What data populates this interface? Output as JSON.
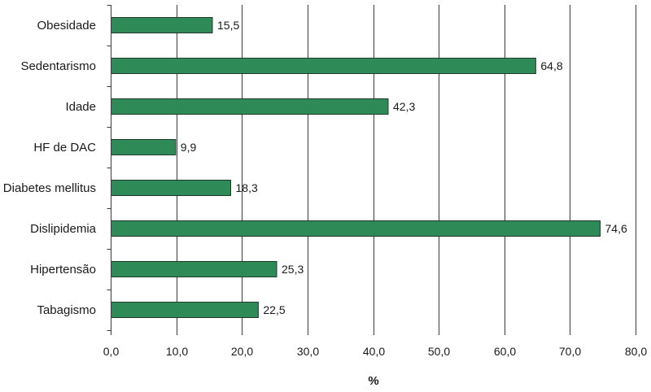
{
  "chart_data": {
    "type": "bar",
    "orientation": "horizontal",
    "categories": [
      "Obesidade",
      "Sedentarismo",
      "Idade",
      "HF de DAC",
      "Diabetes mellitus",
      "Dislipidemia",
      "Hipertensão",
      "Tabagismo"
    ],
    "values": [
      15.5,
      64.8,
      42.3,
      9.9,
      18.3,
      74.6,
      25.3,
      22.5
    ],
    "value_labels": [
      "15,5",
      "64,8",
      "42,3",
      "9,9",
      "18,3",
      "74,6",
      "25,3",
      "22,5"
    ],
    "xlabel": "%",
    "ylabel": "",
    "xlim": [
      0,
      80
    ],
    "xticks": [
      0,
      10,
      20,
      30,
      40,
      50,
      60,
      70,
      80
    ],
    "xtick_labels": [
      "0,0",
      "10,0",
      "20,0",
      "30,0",
      "40,0",
      "50,0",
      "60,0",
      "70,0",
      "80,0"
    ],
    "grid": true,
    "bar_color": "#2e8b57",
    "bar_edge_color": "#1f3b2b",
    "grid_color": "#3a3a3a"
  }
}
